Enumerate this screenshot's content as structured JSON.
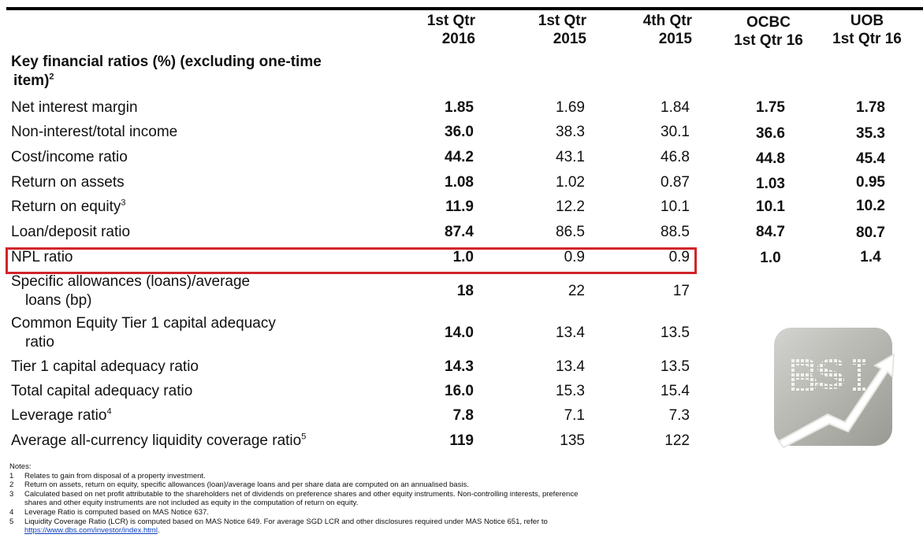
{
  "columns": [
    {
      "line1": "1st Qtr",
      "line2": "2016"
    },
    {
      "line1": "1st Qtr",
      "line2": "2015"
    },
    {
      "line1": "4th Qtr",
      "line2": "2015"
    },
    {
      "line1": "OCBC",
      "line2": "1st Qtr 16"
    },
    {
      "line1": "UOB",
      "line2": "1st Qtr 16"
    }
  ],
  "section": {
    "line1": "Key financial ratios (%) (excluding one-time",
    "line2": "item)",
    "sup": "2"
  },
  "rows": [
    {
      "label": "Net interest margin",
      "q16": "1.85",
      "q15": "1.69",
      "q4": "1.84",
      "ocbc": "1.75",
      "uob": "1.78"
    },
    {
      "label": "Non-interest/total income",
      "q16": "36.0",
      "q15": "38.3",
      "q4": "30.1",
      "ocbc": "36.6",
      "uob": "35.3"
    },
    {
      "label": "Cost/income ratio",
      "q16": "44.2",
      "q15": "43.1",
      "q4": "46.8",
      "ocbc": "44.8",
      "uob": "45.4"
    },
    {
      "label": "Return on assets",
      "q16": "1.08",
      "q15": "1.02",
      "q4": "0.87",
      "ocbc": "1.03",
      "uob": "0.95"
    },
    {
      "label": "Return on equity",
      "sup": "3",
      "q16": "11.9",
      "q15": "12.2",
      "q4": "10.1",
      "ocbc": "10.1",
      "uob": "10.2"
    },
    {
      "label": "Loan/deposit ratio",
      "q16": "87.4",
      "q15": "86.5",
      "q4": "88.5",
      "ocbc": "84.7",
      "uob": "80.7"
    },
    {
      "label": "NPL ratio",
      "q16": "1.0",
      "q15": "0.9",
      "q4": "0.9",
      "ocbc": "1.0",
      "uob": "1.4"
    },
    {
      "label": "Specific allowances (loans)/average",
      "label2": "loans (bp)",
      "q16": "18",
      "q15": "22",
      "q4": "17"
    },
    {
      "label": "Common Equity Tier 1 capital adequacy",
      "label2": "ratio",
      "q16": "14.0",
      "q15": "13.4",
      "q4": "13.5"
    },
    {
      "label": "Tier 1 capital adequacy ratio",
      "q16": "14.3",
      "q15": "13.4",
      "q4": "13.5"
    },
    {
      "label": "Total capital adequacy ratio",
      "q16": "16.0",
      "q15": "15.3",
      "q4": "15.4"
    },
    {
      "label": "Leverage ratio",
      "sup": "4",
      "q16": "7.8",
      "q15": "7.1",
      "q4": "7.3"
    },
    {
      "label": "Average all-currency liquidity coverage ratio",
      "sup": "5",
      "q16": "119",
      "q15": "135",
      "q4": "122"
    }
  ],
  "notes": {
    "title": "Notes:",
    "items": [
      {
        "num": "1",
        "text": "Relates to gain from disposal of a property investment."
      },
      {
        "num": "2",
        "text": "Return on assets, return on equity, specific allowances (loan)/average loans and per share data are computed on an annualised basis."
      },
      {
        "num": "3",
        "text": "Calculated based on net profit attributable to the shareholders net of dividends on preference shares and other equity instruments. Non-controlling interests, preference shares and other equity instruments are not included as equity in the computation of return on equity."
      },
      {
        "num": "4",
        "text": "Leverage Ratio is computed based on MAS Notice 637."
      },
      {
        "num": "5",
        "text": "Liquidity Coverage Ratio (LCR) is computed based on MAS Notice 649. For average SGD LCR and other disclosures required under MAS Notice 651, refer to",
        "link": "https://www.dbs.com/investor/index.html",
        "after": "."
      }
    ]
  },
  "highlight": {
    "row": "NPL ratio",
    "color": "#d1242b"
  },
  "logo": {
    "icon": "bsi-chart-arrow-logo",
    "text": "BSI"
  }
}
